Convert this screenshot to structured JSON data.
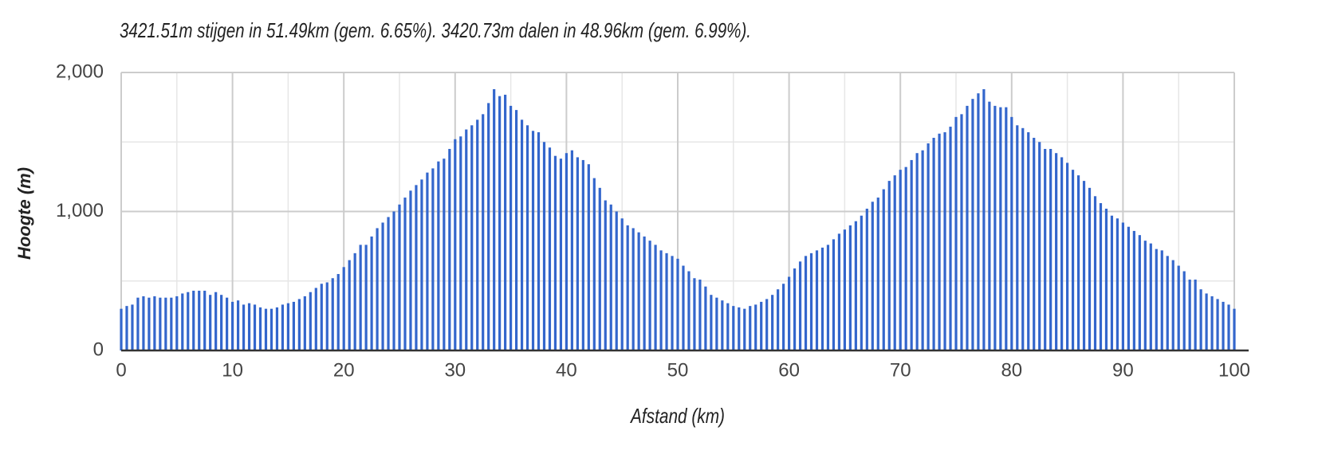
{
  "chart_data": {
    "type": "bar",
    "title": "3421.51m stijgen in 51.49km (gem. 6.65%). 3420.73m dalen in 48.96km (gem. 6.99%).",
    "x_label": "Afstand (km)",
    "y_label": "Hoogte (m)",
    "color": "#3366cc",
    "x": [
      0,
      0.5,
      1,
      1.5,
      2,
      2.5,
      3,
      3.5,
      4,
      4.5,
      5,
      5.5,
      6,
      6.5,
      7,
      7.5,
      8,
      8.5,
      9,
      9.5,
      10,
      10.5,
      11,
      11.5,
      12,
      12.5,
      13,
      13.5,
      14,
      14.5,
      15,
      15.5,
      16,
      16.5,
      17,
      17.5,
      18,
      18.5,
      19,
      19.5,
      20,
      20.5,
      21,
      21.5,
      22,
      22.5,
      23,
      23.5,
      24,
      24.5,
      25,
      25.5,
      26,
      26.5,
      27,
      27.5,
      28,
      28.5,
      29,
      29.5,
      30,
      30.5,
      31,
      31.5,
      32,
      32.5,
      33,
      33.5,
      34,
      34.5,
      35,
      35.5,
      36,
      36.5,
      37,
      37.5,
      38,
      38.5,
      39,
      39.5,
      40,
      40.5,
      41,
      41.5,
      42,
      42.5,
      43,
      43.5,
      44,
      44.5,
      45,
      45.5,
      46,
      46.5,
      47,
      47.5,
      48,
      48.5,
      49,
      49.5,
      50,
      50.5,
      51,
      51.5,
      52,
      52.5,
      53,
      53.5,
      54,
      54.5,
      55,
      55.5,
      56,
      56.5,
      57,
      57.5,
      58,
      58.5,
      59,
      59.5,
      60,
      60.5,
      61,
      61.5,
      62,
      62.5,
      63,
      63.5,
      64,
      64.5,
      65,
      65.5,
      66,
      66.5,
      67,
      67.5,
      68,
      68.5,
      69,
      69.5,
      70,
      70.5,
      71,
      71.5,
      72,
      72.5,
      73,
      73.5,
      74,
      74.5,
      75,
      75.5,
      76,
      76.5,
      77,
      77.5,
      78,
      78.5,
      79,
      79.5,
      80,
      80.5,
      81,
      81.5,
      82,
      82.5,
      83,
      83.5,
      84,
      84.5,
      85,
      85.5,
      86,
      86.5,
      87,
      87.5,
      88,
      88.5,
      89,
      89.5,
      90,
      90.5,
      91,
      91.5,
      92,
      92.5,
      93,
      93.5,
      94,
      94.5,
      95,
      95.5,
      96,
      96.5,
      97,
      97.5,
      98,
      98.5,
      99,
      99.5,
      100
    ],
    "values": [
      300,
      320,
      330,
      380,
      390,
      380,
      390,
      380,
      380,
      380,
      390,
      410,
      420,
      430,
      430,
      430,
      400,
      420,
      400,
      380,
      350,
      360,
      330,
      340,
      330,
      310,
      300,
      300,
      310,
      330,
      340,
      350,
      370,
      390,
      420,
      450,
      480,
      490,
      520,
      550,
      600,
      650,
      700,
      760,
      760,
      820,
      880,
      920,
      960,
      1000,
      1050,
      1100,
      1150,
      1190,
      1230,
      1280,
      1310,
      1360,
      1380,
      1450,
      1520,
      1540,
      1590,
      1620,
      1660,
      1700,
      1780,
      1880,
      1830,
      1840,
      1760,
      1730,
      1660,
      1620,
      1580,
      1570,
      1500,
      1460,
      1400,
      1380,
      1420,
      1440,
      1390,
      1370,
      1340,
      1240,
      1170,
      1080,
      1050,
      1000,
      950,
      900,
      880,
      850,
      820,
      790,
      760,
      720,
      700,
      680,
      660,
      610,
      570,
      520,
      510,
      460,
      400,
      380,
      360,
      340,
      320,
      310,
      300,
      320,
      330,
      350,
      370,
      400,
      440,
      480,
      530,
      590,
      640,
      680,
      700,
      720,
      740,
      760,
      800,
      840,
      870,
      900,
      930,
      970,
      1020,
      1070,
      1100,
      1160,
      1220,
      1260,
      1300,
      1320,
      1370,
      1420,
      1440,
      1490,
      1530,
      1560,
      1570,
      1610,
      1680,
      1700,
      1760,
      1810,
      1850,
      1880,
      1790,
      1760,
      1750,
      1750,
      1680,
      1620,
      1600,
      1570,
      1530,
      1500,
      1450,
      1450,
      1420,
      1390,
      1350,
      1300,
      1260,
      1220,
      1170,
      1110,
      1060,
      1020,
      970,
      950,
      920,
      890,
      860,
      830,
      790,
      770,
      730,
      720,
      680,
      650,
      610,
      570,
      510,
      510,
      440,
      410,
      390,
      370,
      350,
      330,
      300
    ],
    "xlim": [
      0,
      100
    ],
    "xticks": [
      0,
      10,
      20,
      30,
      40,
      50,
      60,
      70,
      80,
      90,
      100
    ],
    "x_minor_ticks": [
      5,
      15,
      25,
      35,
      45,
      55,
      65,
      75,
      85,
      95
    ],
    "ylim": [
      0,
      2000
    ],
    "yticks": [
      0,
      {
        "value": 1000,
        "label": "1,000"
      },
      {
        "value": 2000,
        "label": "2,000"
      }
    ],
    "y_minor_ticks": [
      500,
      1500
    ],
    "grid": true
  }
}
